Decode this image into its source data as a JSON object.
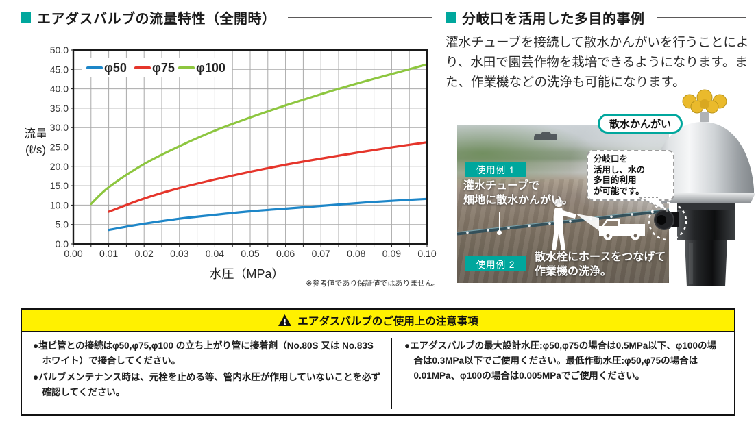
{
  "colors": {
    "accent": "#00a79d",
    "warning_yellow": "#fff100",
    "series_blue": "#1d86c8",
    "series_red": "#e5352b",
    "series_green": "#8dc63f"
  },
  "left_section": {
    "title": "エアダスバルブの流量特性（全開時）",
    "note": "※参考値であり保証値ではありません。"
  },
  "chart_data": {
    "type": "line",
    "title": "エアダスバルブの流量特性（全開時）",
    "xlabel": "水圧（MPa）",
    "ylabel": "流量\n(ℓ/s)",
    "xlim": [
      0,
      0.1
    ],
    "ylim": [
      0,
      50
    ],
    "x_major_step": 0.01,
    "x_minor_step": 0.005,
    "y_step": 5,
    "grid": true,
    "legend_position": "top-left-inside",
    "series": [
      {
        "name": "φ50",
        "color": "#1d86c8",
        "x": [
          0.01,
          0.02,
          0.03,
          0.04,
          0.05,
          0.06,
          0.07,
          0.08,
          0.09,
          0.1
        ],
        "y": [
          3.6,
          5.2,
          6.5,
          7.5,
          8.4,
          9.1,
          9.8,
          10.5,
          11.1,
          11.6
        ]
      },
      {
        "name": "φ75",
        "color": "#e5352b",
        "x": [
          0.01,
          0.02,
          0.03,
          0.04,
          0.05,
          0.06,
          0.07,
          0.08,
          0.09,
          0.1
        ],
        "y": [
          8.3,
          11.7,
          14.4,
          16.6,
          18.6,
          20.4,
          22.0,
          23.5,
          24.9,
          26.2
        ]
      },
      {
        "name": "φ100",
        "color": "#8dc63f",
        "x": [
          0.005,
          0.01,
          0.02,
          0.03,
          0.04,
          0.05,
          0.06,
          0.07,
          0.08,
          0.09,
          0.1
        ],
        "y": [
          10.3,
          14.6,
          20.6,
          25.2,
          29.2,
          32.6,
          35.7,
          38.6,
          41.3,
          43.8,
          46.3
        ]
      }
    ]
  },
  "right_section": {
    "title": "分岐口を活用した多目的事例",
    "description": "灌水チューブを接続して散水かんがいを行うことにより、水田で園芸作物を栽培できるようになります。また、作業機などの洗浄も可能になります。",
    "photo": {
      "pill_label": "散水かんがい",
      "example1_badge": "使用例 1",
      "example1_caption": "灌水チューブで\n畑地に散水かんがい。",
      "bubble_text": "分岐口を\n活用し、水の\n多目的利用\nが可能です。",
      "example2_badge": "使用例 2",
      "example2_caption": "散水栓にホースをつなげて\n作業機の洗浄。"
    }
  },
  "notice": {
    "header": "エアダスバルブのご使用上の注意事項",
    "left_bullets": [
      "塩ビ管との接続はφ50,φ75,φ100 の立ち上がり管に接着剤（No.80S 又は No.83S ホワイト）で接合してください。",
      "バルブメンテナンス時は、元栓を止める等、管内水圧が作用していないことを必ず確認してください。"
    ],
    "right_bullets": [
      "エアダスバルブの最大設計水圧:φ50,φ75の場合は0.5MPa以下、φ100の場合は0.3MPa以下でご使用ください。最低作動水圧:φ50,φ75の場合は0.01MPa、φ100の場合は0.005MPaでご使用ください。"
    ]
  }
}
